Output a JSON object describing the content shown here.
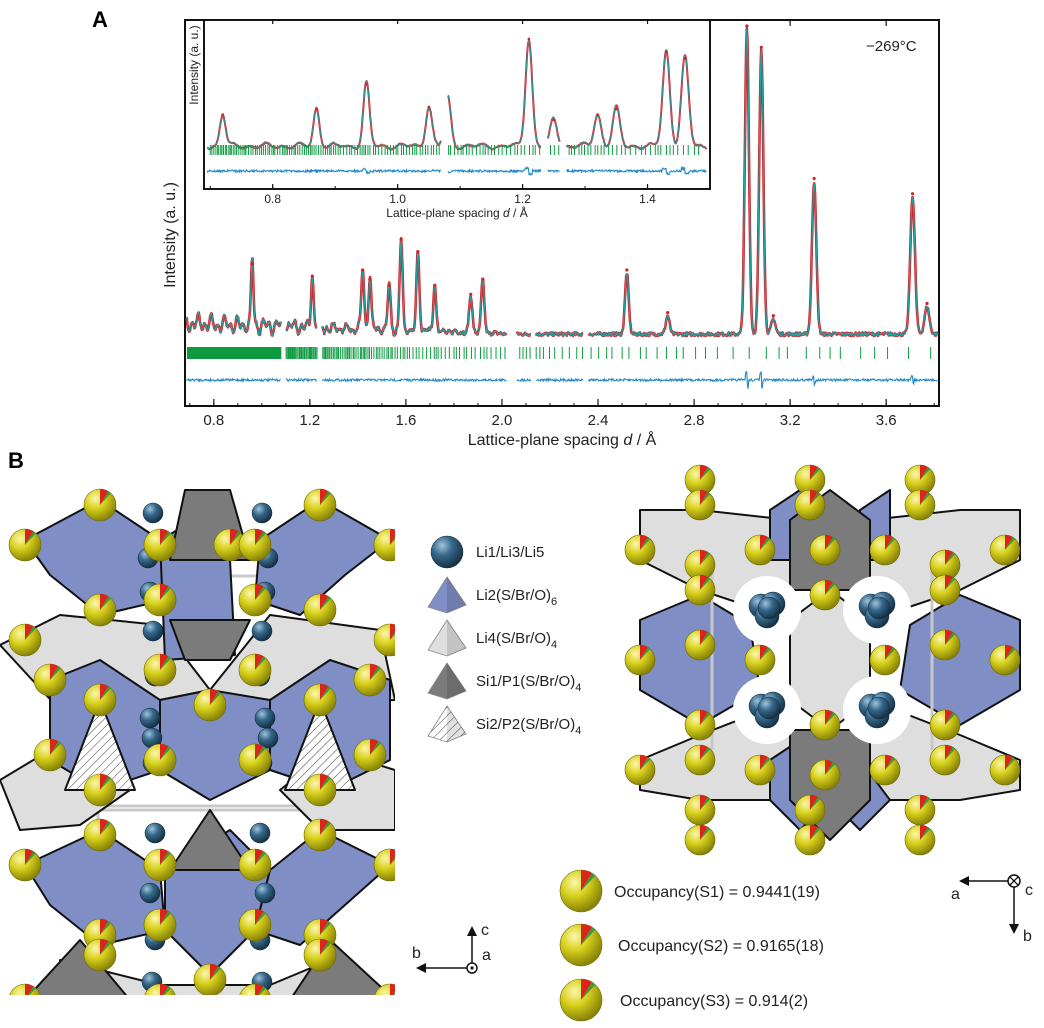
{
  "panel_a_label": "A",
  "panel_b_label": "B",
  "temperature": "−269°C",
  "colors": {
    "observed": "#d42027",
    "calculated": "#1aa7a7",
    "reflections": "#0f9a40",
    "difference": "#1f8ac6",
    "li_sphere": "#2f5f7f",
    "li2_octahedra": "#7f8ec4",
    "li4_tetrahedra": "#dedede",
    "si1_tetrahedra": "#7b7b7b",
    "s_sphere": "#d6cf1f"
  },
  "main_plot": {
    "xlabel": "Lattice-plane spacing",
    "xlabel_var": "d",
    "xlabel_unit": " / Å",
    "ylabel": "Intensity (a. u.)",
    "xticks": [
      "0.8",
      "1.2",
      "1.6",
      "2.0",
      "2.4",
      "2.8",
      "3.2",
      "3.6"
    ]
  },
  "inset_plot": {
    "xlabel": "Lattice-plane spacing",
    "xlabel_var": "d",
    "xlabel_unit": " / Å",
    "ylabel": "Intensity (a. u.)",
    "xticks": [
      "0.8",
      "1.0",
      "1.2",
      "1.4"
    ]
  },
  "chart_data": [
    {
      "type": "line",
      "xlabel": "Lattice-plane spacing d / Å",
      "ylabel": "Intensity (a. u.)",
      "xlim": [
        0.68,
        3.82
      ],
      "xticks": [
        0.8,
        1.2,
        1.6,
        2.0,
        2.4,
        2.8,
        3.2,
        3.6
      ],
      "excluded_ranges": [
        [
          1.08,
          1.1
        ],
        [
          1.23,
          1.25
        ],
        [
          2.02,
          2.06
        ],
        [
          2.12,
          2.14
        ],
        [
          2.34,
          2.36
        ]
      ],
      "peaks": [
        {
          "d": 0.96,
          "rel": 0.22
        },
        {
          "d": 1.21,
          "rel": 0.18
        },
        {
          "d": 1.42,
          "rel": 0.2
        },
        {
          "d": 1.45,
          "rel": 0.17
        },
        {
          "d": 1.53,
          "rel": 0.15
        },
        {
          "d": 1.58,
          "rel": 0.3
        },
        {
          "d": 1.65,
          "rel": 0.26
        },
        {
          "d": 1.72,
          "rel": 0.15
        },
        {
          "d": 1.87,
          "rel": 0.12
        },
        {
          "d": 1.92,
          "rel": 0.17
        },
        {
          "d": 2.52,
          "rel": 0.2
        },
        {
          "d": 2.69,
          "rel": 0.06
        },
        {
          "d": 3.02,
          "rel": 1.0
        },
        {
          "d": 3.08,
          "rel": 0.93
        },
        {
          "d": 3.13,
          "rel": 0.05
        },
        {
          "d": 3.3,
          "rel": 0.5
        },
        {
          "d": 3.71,
          "rel": 0.45
        },
        {
          "d": 3.77,
          "rel": 0.09
        }
      ]
    },
    {
      "type": "line",
      "xlabel": "Lattice-plane spacing d / Å",
      "ylabel": "Intensity (a. u.)",
      "xlim": [
        0.69,
        1.5
      ],
      "xticks": [
        0.8,
        1.0,
        1.2,
        1.4
      ],
      "excluded_ranges": [
        [
          1.07,
          1.08
        ],
        [
          1.23,
          1.24
        ],
        [
          1.26,
          1.27
        ]
      ],
      "peaks": [
        {
          "d": 0.72,
          "rel": 0.3
        },
        {
          "d": 0.87,
          "rel": 0.35
        },
        {
          "d": 0.95,
          "rel": 0.58
        },
        {
          "d": 1.05,
          "rel": 0.37
        },
        {
          "d": 1.08,
          "rel": 0.45
        },
        {
          "d": 1.21,
          "rel": 1.0
        },
        {
          "d": 1.25,
          "rel": 0.25
        },
        {
          "d": 1.32,
          "rel": 0.3
        },
        {
          "d": 1.35,
          "rel": 0.35
        },
        {
          "d": 1.43,
          "rel": 0.88
        },
        {
          "d": 1.46,
          "rel": 0.82
        }
      ]
    }
  ],
  "legend": [
    {
      "icon": "blue-sphere",
      "label": "Li1/Li3/Li5"
    },
    {
      "icon": "blue-tetrahedron",
      "label": "Li2(S/Br/O)",
      "sub": "6"
    },
    {
      "icon": "light-tetrahedron",
      "label": "Li4(S/Br/O)",
      "sub": "4"
    },
    {
      "icon": "dark-tetrahedron",
      "label": "Si1/P1(S/Br/O)",
      "sub": "4"
    },
    {
      "icon": "hatched-tetrahedron",
      "label": "Si2/P2(S/Br/O)",
      "sub": "4"
    }
  ],
  "occupancies": [
    {
      "label": "Occupancy(S1) = 0.9441(19)"
    },
    {
      "label": "Occupancy(S2) = 0.9165(18)"
    },
    {
      "label": "Occupancy(S3) = 0.914(2)"
    }
  ],
  "axes_left": {
    "up": "c",
    "left": "b",
    "out": "a"
  },
  "axes_right": {
    "left": "a",
    "down": "b",
    "in": "c"
  }
}
